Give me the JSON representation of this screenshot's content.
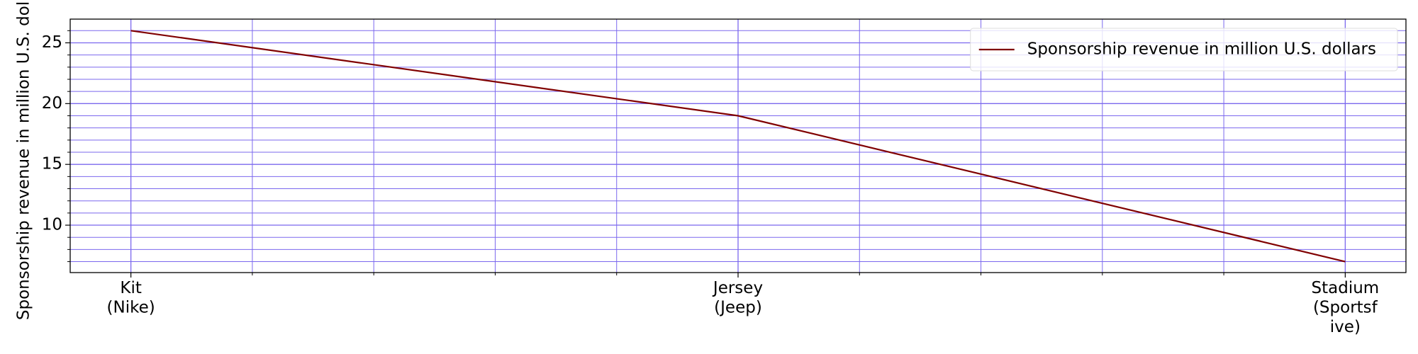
{
  "chart_data": {
    "type": "line",
    "ylabel": "Sponsorship revenue in million U.S. dollars",
    "categories": [
      "Kit\n(Nike)",
      "Jersey\n(Jeep)",
      "Stadium\n(Sportsf\nive)"
    ],
    "series": [
      {
        "name": "Sponsorship revenue in million U.S. dollars",
        "color": "#800000",
        "values": [
          26,
          19,
          7
        ]
      }
    ],
    "xlim": [
      -0.1,
      2.1
    ],
    "ylim": [
      6.1,
      26.95
    ],
    "yticks": [
      10,
      15,
      20,
      25
    ],
    "yminor_ticks": [
      7,
      8,
      9,
      11,
      12,
      13,
      14,
      16,
      17,
      18,
      19,
      21,
      22,
      23,
      24,
      26
    ],
    "xminor_ticks": [
      0.2,
      0.4,
      0.6,
      0.8,
      1.2,
      1.4,
      1.6,
      1.8
    ],
    "grid": true,
    "grid_color": "#7b68ee",
    "legend": "upper right"
  }
}
